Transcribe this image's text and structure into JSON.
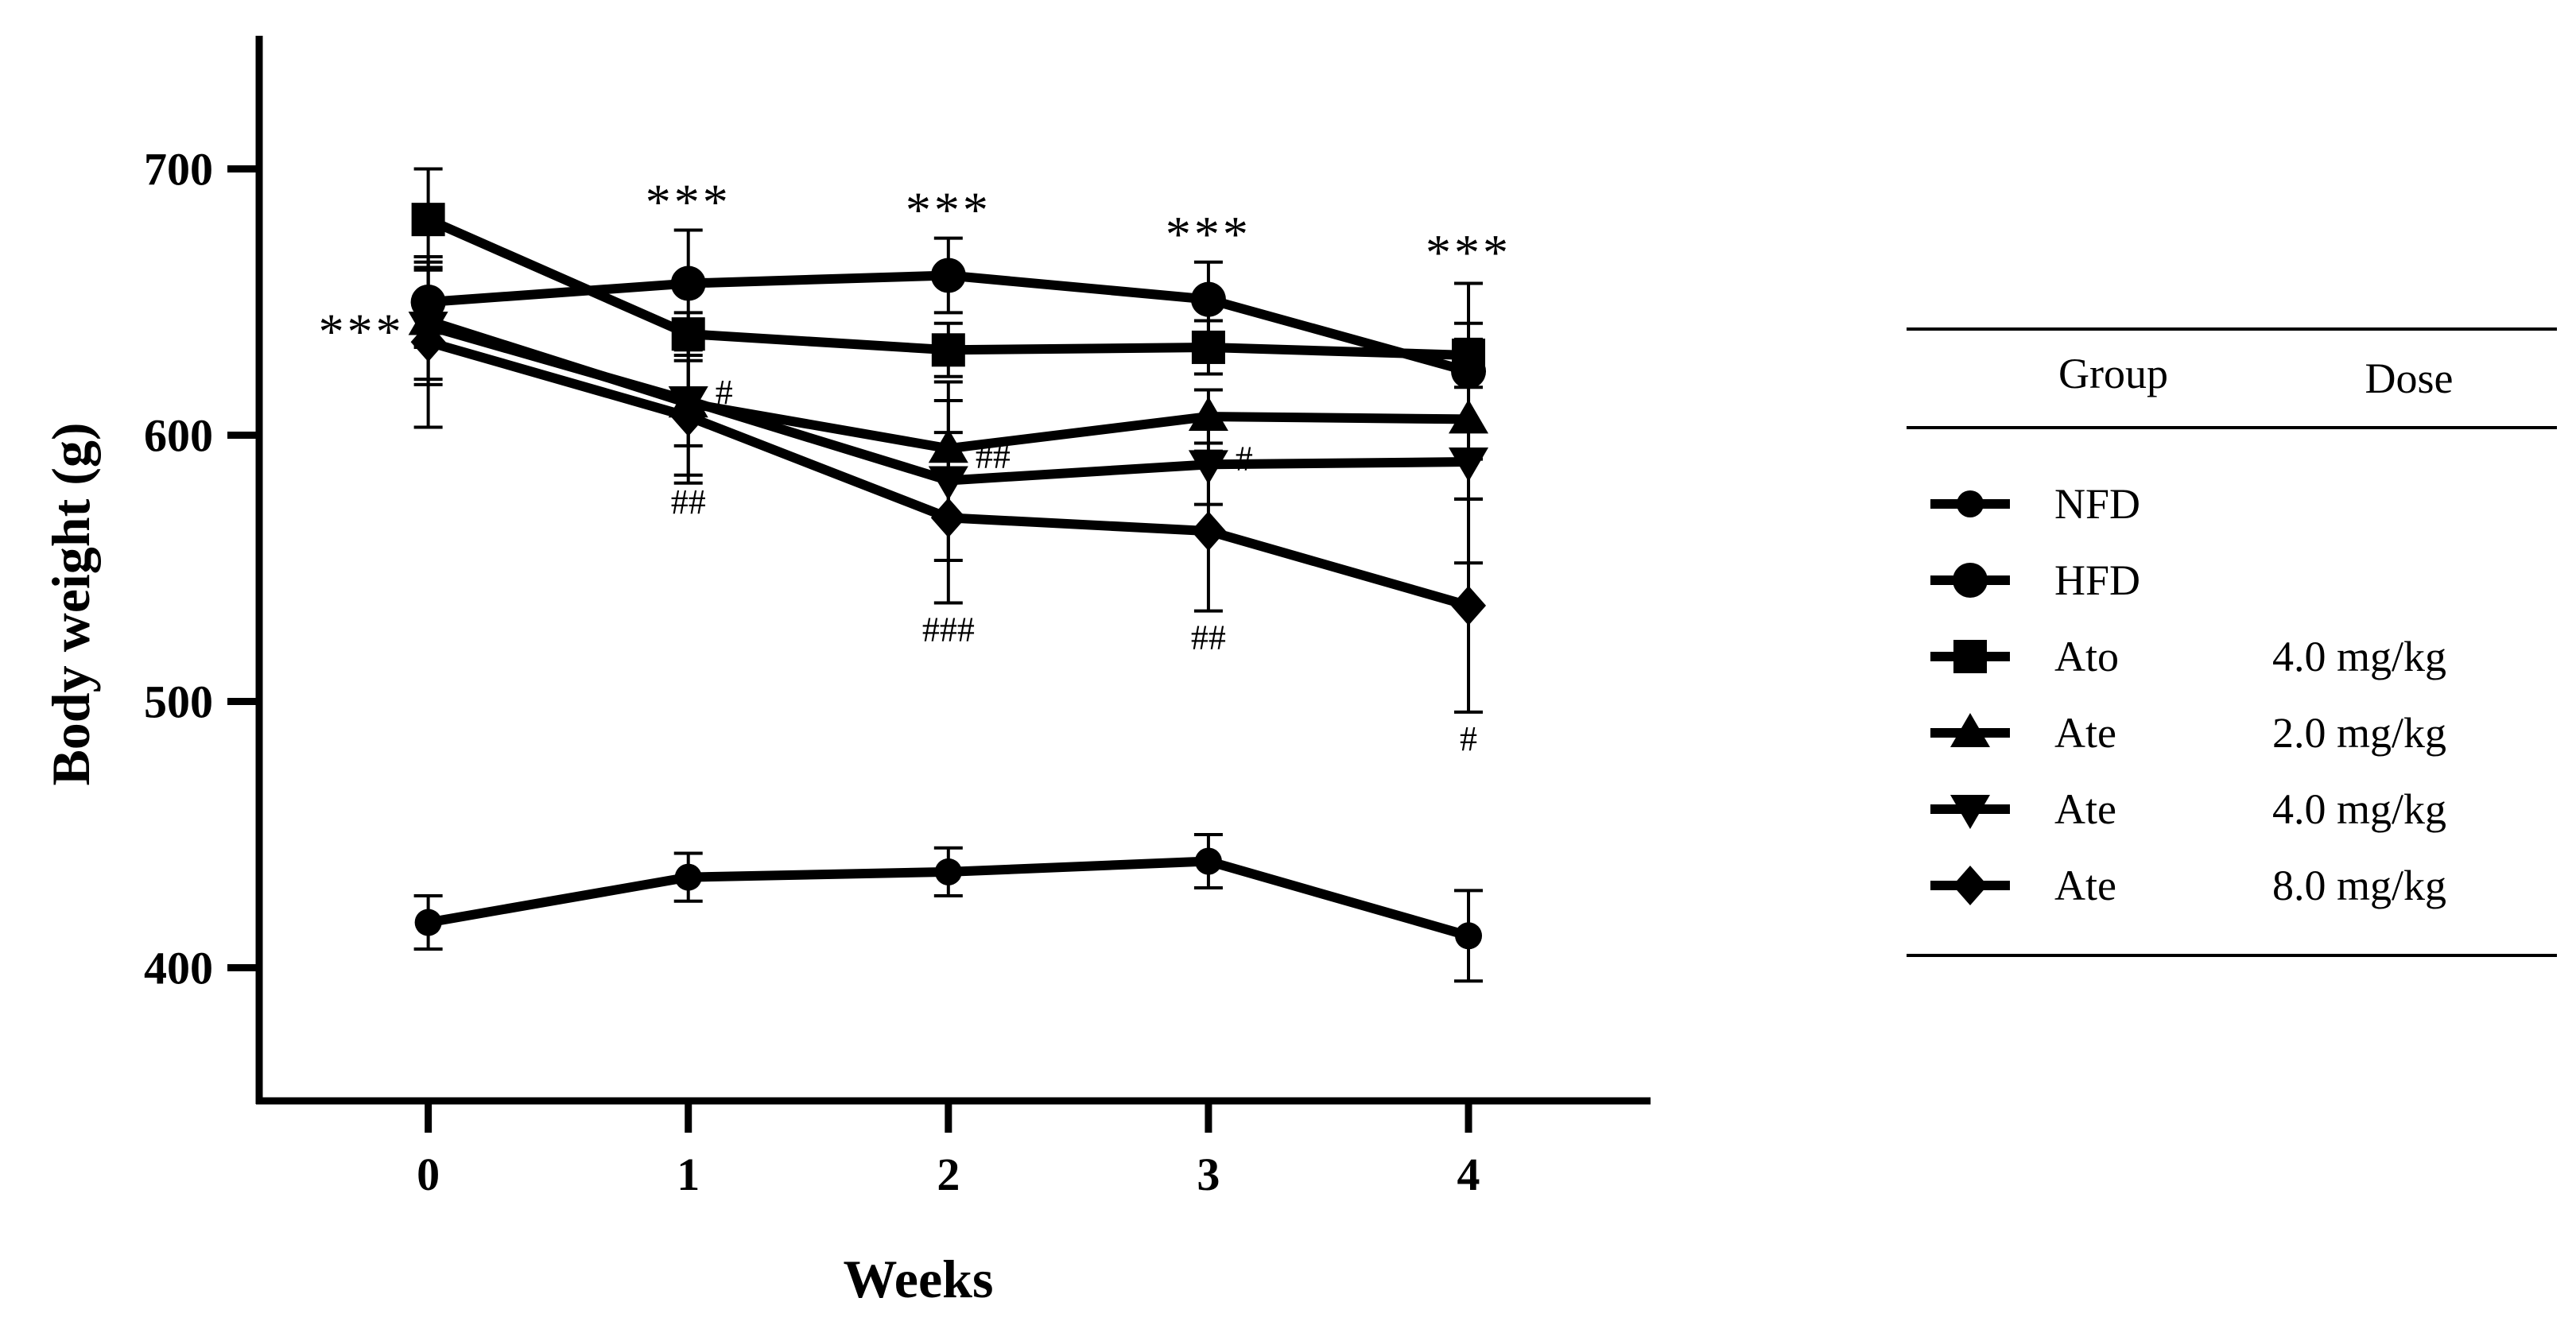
{
  "chart_data": {
    "type": "line",
    "title": "",
    "xlabel": "Weeks",
    "ylabel": "Body weight (g)",
    "x": [
      0,
      1,
      2,
      3,
      4
    ],
    "xticks": [
      "0",
      "1",
      "2",
      "3",
      "4"
    ],
    "xlim": [
      -0.65,
      4.7
    ],
    "ylim": [
      350,
      750
    ],
    "yticks": [
      "400",
      "500",
      "600",
      "700"
    ],
    "yticks_values": [
      400,
      500,
      600,
      700
    ],
    "series": [
      {
        "name": "NFD",
        "dose": "",
        "marker": "circle-small",
        "values": [
          417,
          434,
          436,
          440,
          412
        ],
        "errors": [
          10,
          9,
          9,
          10,
          17
        ]
      },
      {
        "name": "HFD",
        "dose": "",
        "marker": "circle",
        "values": [
          650,
          657,
          660,
          651,
          624
        ],
        "errors": [
          17,
          20,
          14,
          14,
          33
        ]
      },
      {
        "name": "Ato",
        "dose": "4.0 mg/kg",
        "marker": "square",
        "values": [
          681,
          638,
          632,
          633,
          630
        ],
        "errors": [
          19,
          8,
          10,
          10,
          12
        ]
      },
      {
        "name": "Ate",
        "dose": "2.0 mg/kg",
        "marker": "triangle-up",
        "values": [
          643,
          612,
          595,
          607,
          606
        ],
        "errors": [
          22,
          16,
          25,
          10,
          30
        ]
      },
      {
        "name": "Ate",
        "dose": "4.0 mg/kg",
        "marker": "triangle-down",
        "values": [
          641,
          613,
          583,
          589,
          590
        ],
        "errors": [
          22,
          28,
          30,
          15,
          38
        ]
      },
      {
        "name": "Ate",
        "dose": "8.0 mg/kg",
        "marker": "diamond",
        "values": [
          635,
          607,
          569,
          564,
          536
        ],
        "errors": [
          32,
          25,
          32,
          30,
          40
        ]
      }
    ],
    "annotations": [
      {
        "text": "***",
        "x": 0,
        "y": 635,
        "kind": "stars-left"
      },
      {
        "text": "***",
        "x": 1,
        "y": 677,
        "kind": "stars"
      },
      {
        "text": "***",
        "x": 2,
        "y": 674,
        "kind": "stars"
      },
      {
        "text": "***",
        "x": 3,
        "y": 665,
        "kind": "stars"
      },
      {
        "text": "***",
        "x": 4,
        "y": 658,
        "kind": "stars"
      },
      {
        "text": "#",
        "x": 1,
        "y": 613,
        "kind": "right"
      },
      {
        "text": "##",
        "x": 1,
        "y": 585,
        "kind": "below"
      },
      {
        "text": "##",
        "x": 2,
        "y": 589,
        "kind": "right"
      },
      {
        "text": "###",
        "x": 2,
        "y": 537,
        "kind": "below"
      },
      {
        "text": "#",
        "x": 3,
        "y": 588,
        "kind": "right"
      },
      {
        "text": "##",
        "x": 3,
        "y": 534,
        "kind": "below"
      },
      {
        "text": "#",
        "x": 4,
        "y": 496,
        "kind": "below"
      }
    ],
    "legend": {
      "position": "right",
      "header_group": "Group",
      "header_dose": "Dose"
    }
  }
}
